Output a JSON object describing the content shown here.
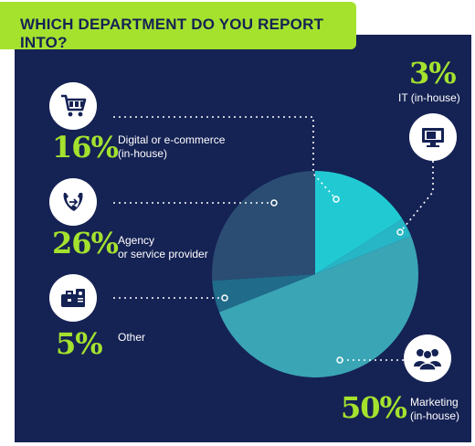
{
  "title": "WHICH DEPARTMENT DO YOU REPORT INTO?",
  "colors": {
    "background": "#152254",
    "accent": "#a4e22e",
    "digital": "#21cad3",
    "it": "#27b6c6",
    "marketing": "#3aa5b5",
    "other": "#206b8a",
    "agency": "#2b4d73"
  },
  "categories": [
    {
      "key": "digital",
      "percent_label": "16%",
      "label_lines": [
        "Digital or e-commerce",
        "(in-house)"
      ],
      "icon": "shopping-cart-icon"
    },
    {
      "key": "agency",
      "percent_label": "26%",
      "label_lines": [
        "Agency",
        "or service provider"
      ],
      "icon": "phone-transfer-icon"
    },
    {
      "key": "other",
      "percent_label": "5%",
      "label_lines": [
        "Other"
      ],
      "icon": "briefcase-icon"
    },
    {
      "key": "it",
      "percent_label": "3%",
      "label_lines": [
        "IT (in-house)"
      ],
      "icon": "computer-icon"
    },
    {
      "key": "marketing",
      "percent_label": "50%",
      "label_lines": [
        "Marketing",
        "(in-house)"
      ],
      "icon": "people-group-icon"
    }
  ],
  "chart_data": {
    "type": "pie",
    "title": "WHICH DEPARTMENT DO YOU REPORT INTO?",
    "start": "12 o'clock, clockwise",
    "slices": [
      {
        "label": "Digital or e-commerce (in-house)",
        "value": 16,
        "color": "#21cad3"
      },
      {
        "label": "IT (in-house)",
        "value": 3,
        "color": "#27b6c6"
      },
      {
        "label": "Marketing (in-house)",
        "value": 50,
        "color": "#3aa5b5"
      },
      {
        "label": "Other",
        "value": 5,
        "color": "#206b8a"
      },
      {
        "label": "Agency or service provider",
        "value": 26,
        "color": "#2b4d73"
      }
    ]
  }
}
